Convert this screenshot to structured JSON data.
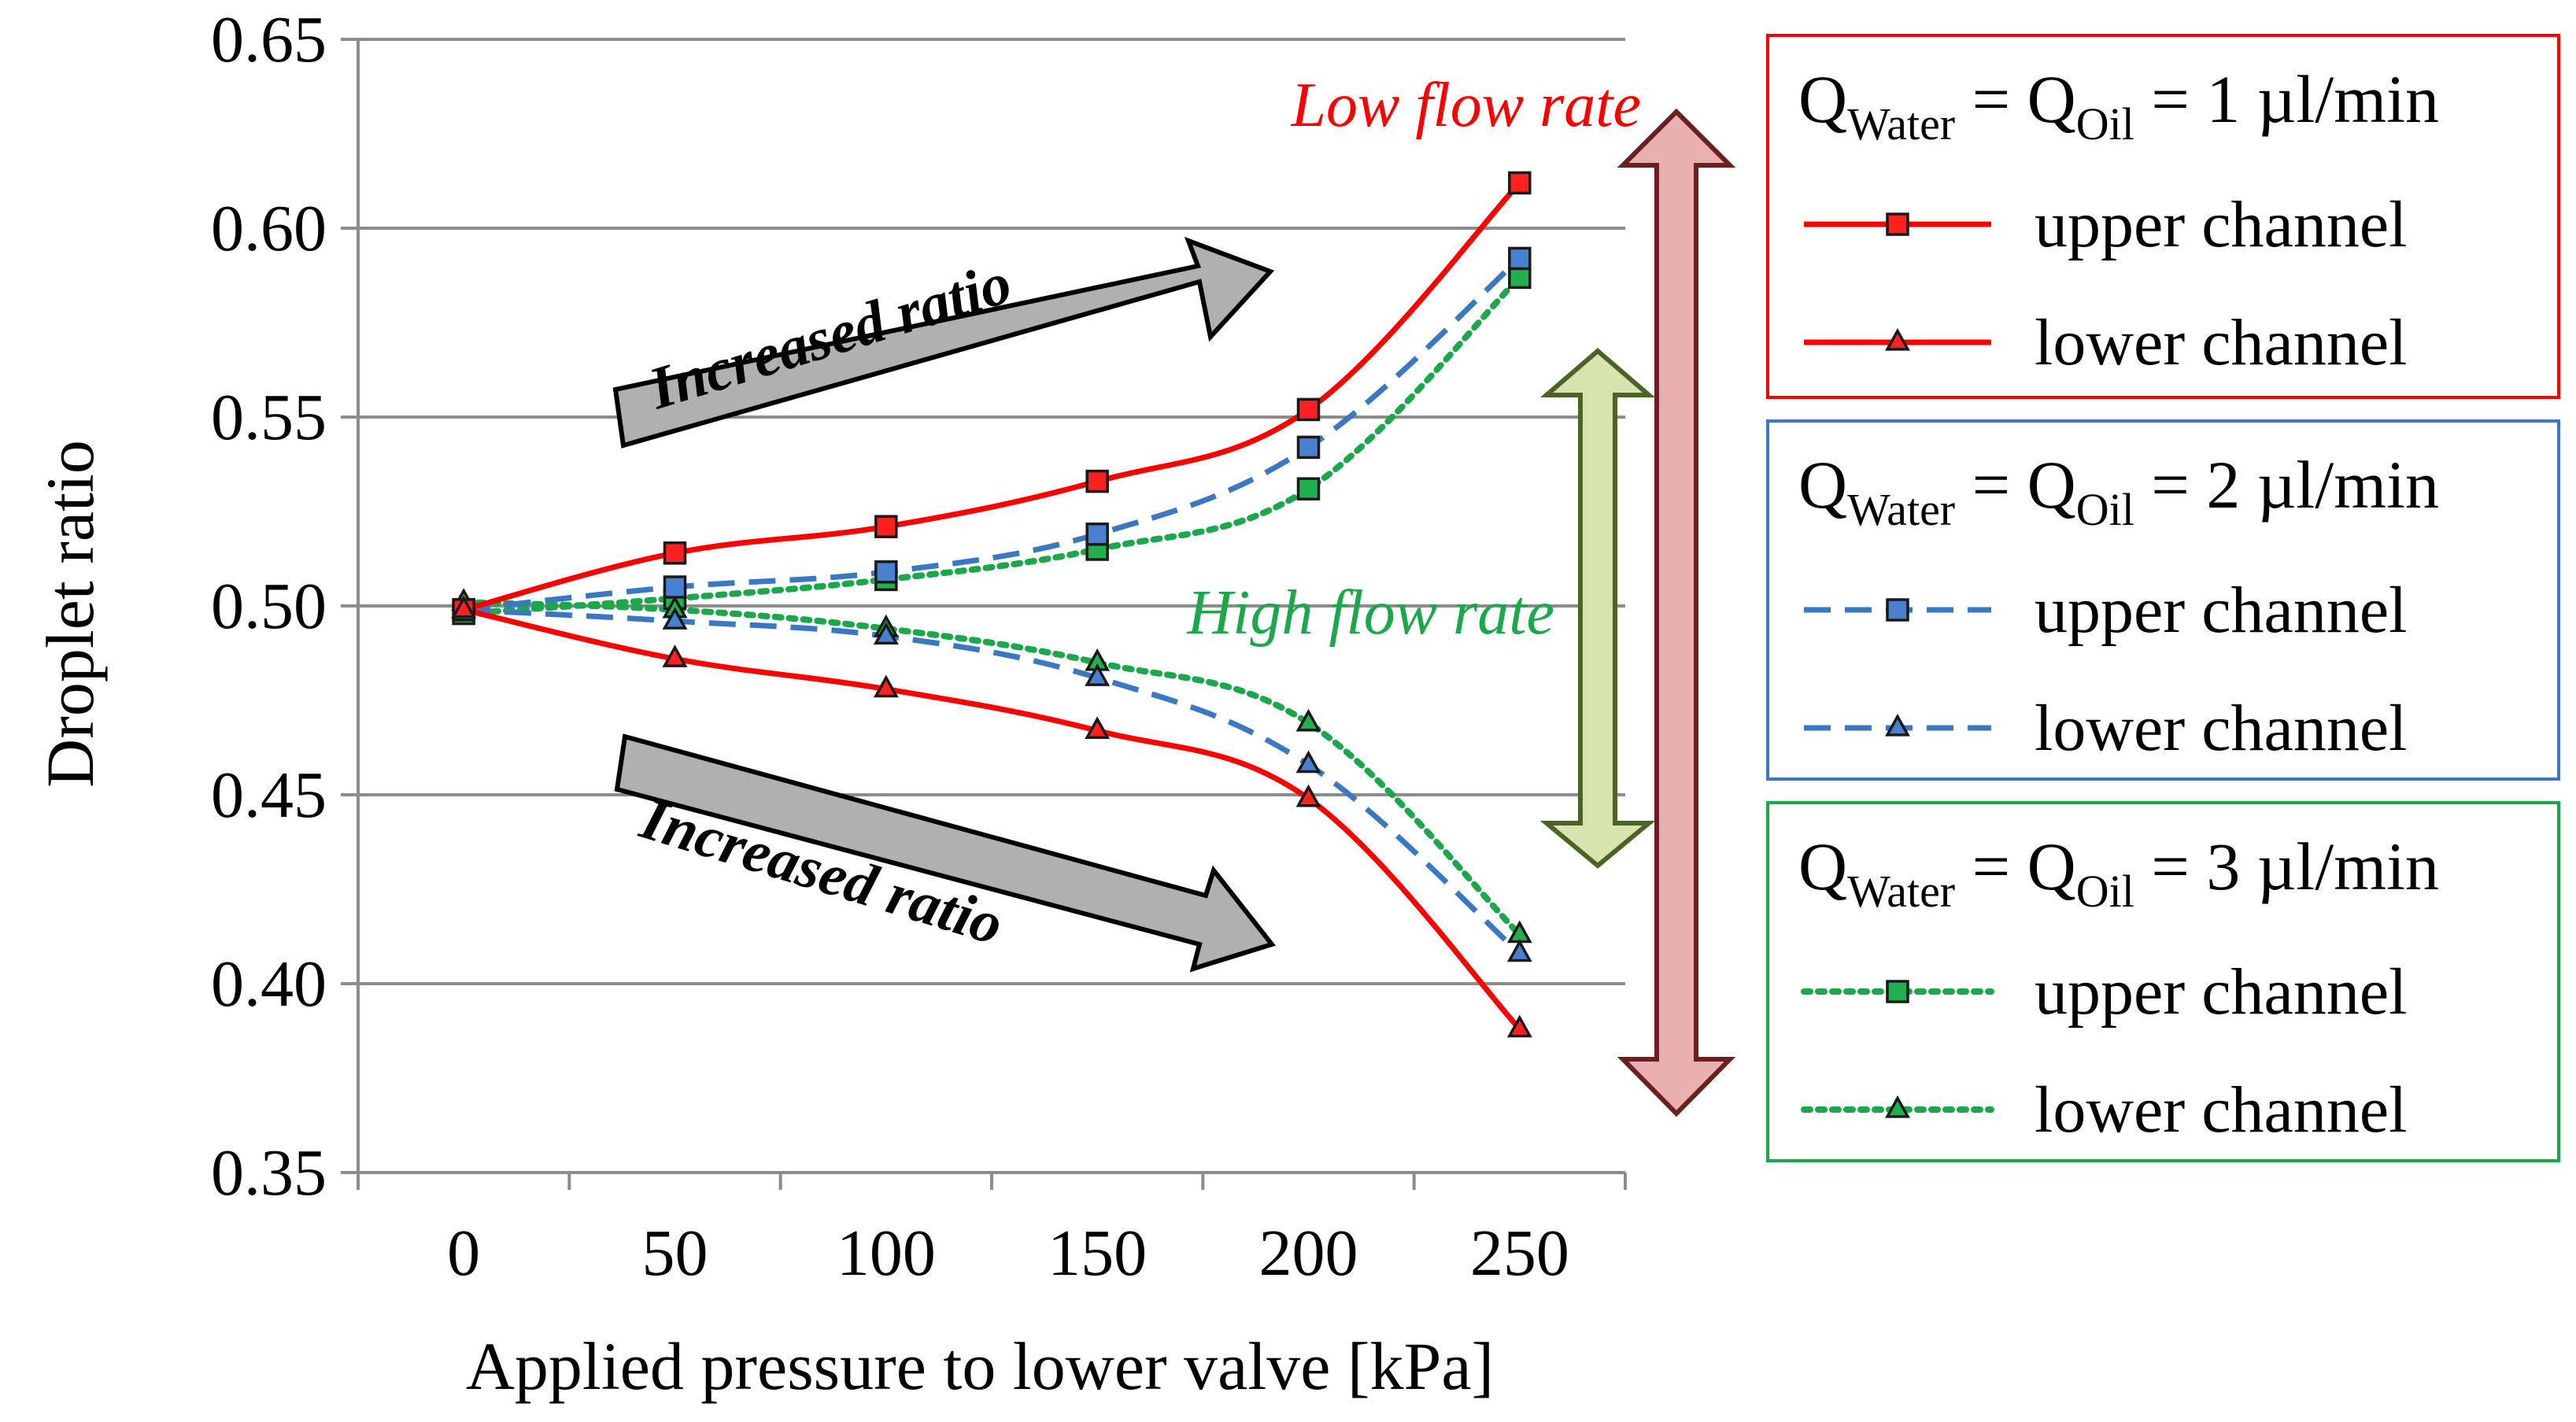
{
  "chart_data": {
    "type": "line",
    "xlabel": "Applied pressure to lower valve [kPa]",
    "ylabel": "Droplet ratio",
    "x": [
      0,
      50,
      100,
      150,
      200,
      250
    ],
    "x_ticks": [
      "0",
      "50",
      "100",
      "150",
      "200",
      "250"
    ],
    "xlim": [
      -25,
      275
    ],
    "ylim": [
      0.35,
      0.65
    ],
    "y_ticks": [
      "0.35",
      "0.40",
      "0.45",
      "0.50",
      "0.55",
      "0.60",
      "0.65"
    ],
    "grid": "horizontal",
    "series": [
      {
        "name": "upper channel",
        "group": "1 µl/min",
        "color": "#ff0000",
        "line": "solid",
        "marker": "square",
        "marker_fill": "#ff2020",
        "values": [
          0.499,
          0.514,
          0.521,
          0.533,
          0.552,
          0.612
        ]
      },
      {
        "name": "lower channel",
        "group": "1 µl/min",
        "color": "#ff0000",
        "line": "solid",
        "marker": "triangle",
        "marker_fill": "#ff2020",
        "values": [
          0.499,
          0.486,
          0.478,
          0.467,
          0.449,
          0.388
        ]
      },
      {
        "name": "upper channel",
        "group": "2 µl/min",
        "color": "#3a78c4",
        "line": "dashed",
        "marker": "square",
        "marker_fill": "#4a80d0",
        "values": [
          0.499,
          0.505,
          0.509,
          0.519,
          0.542,
          0.592
        ]
      },
      {
        "name": "lower channel",
        "group": "2 µl/min",
        "color": "#3a78c4",
        "line": "dashed",
        "marker": "triangle",
        "marker_fill": "#4a80d0",
        "values": [
          0.499,
          0.496,
          0.492,
          0.481,
          0.458,
          0.408
        ]
      },
      {
        "name": "upper channel",
        "group": "3 µl/min",
        "color": "#1aa84a",
        "line": "dotted",
        "marker": "square",
        "marker_fill": "#20b050",
        "values": [
          0.498,
          0.502,
          0.507,
          0.515,
          0.531,
          0.587
        ]
      },
      {
        "name": "lower channel",
        "group": "3 µl/min",
        "color": "#1aa84a",
        "line": "dotted",
        "marker": "triangle",
        "marker_fill": "#20b050",
        "values": [
          0.501,
          0.499,
          0.494,
          0.485,
          0.469,
          0.413
        ]
      }
    ],
    "annotations": {
      "low_flow": "Low flow rate",
      "high_flow": "High flow rate",
      "arrow_up_text": "Increased ratio",
      "arrow_down_text": "Increased ratio"
    },
    "legend": {
      "placement": "right",
      "groups": [
        {
          "q_sym": "Q",
          "sub_water": "Water",
          "eq": "=",
          "sub_oil": "Oil",
          "rate": "= 1 µl/min",
          "color": "#ff0000",
          "items": [
            "upper channel",
            "lower channel"
          ]
        },
        {
          "q_sym": "Q",
          "sub_water": "Water",
          "eq": "=",
          "sub_oil": "Oil",
          "rate": "= 2 µl/min",
          "color": "#3a78c4",
          "items": [
            "upper channel",
            "lower channel"
          ]
        },
        {
          "q_sym": "Q",
          "sub_water": "Water",
          "eq": "=",
          "sub_oil": "Oil",
          "rate": "= 3 µl/min",
          "color": "#1aa84a",
          "items": [
            "upper channel",
            "lower channel"
          ]
        }
      ]
    }
  }
}
